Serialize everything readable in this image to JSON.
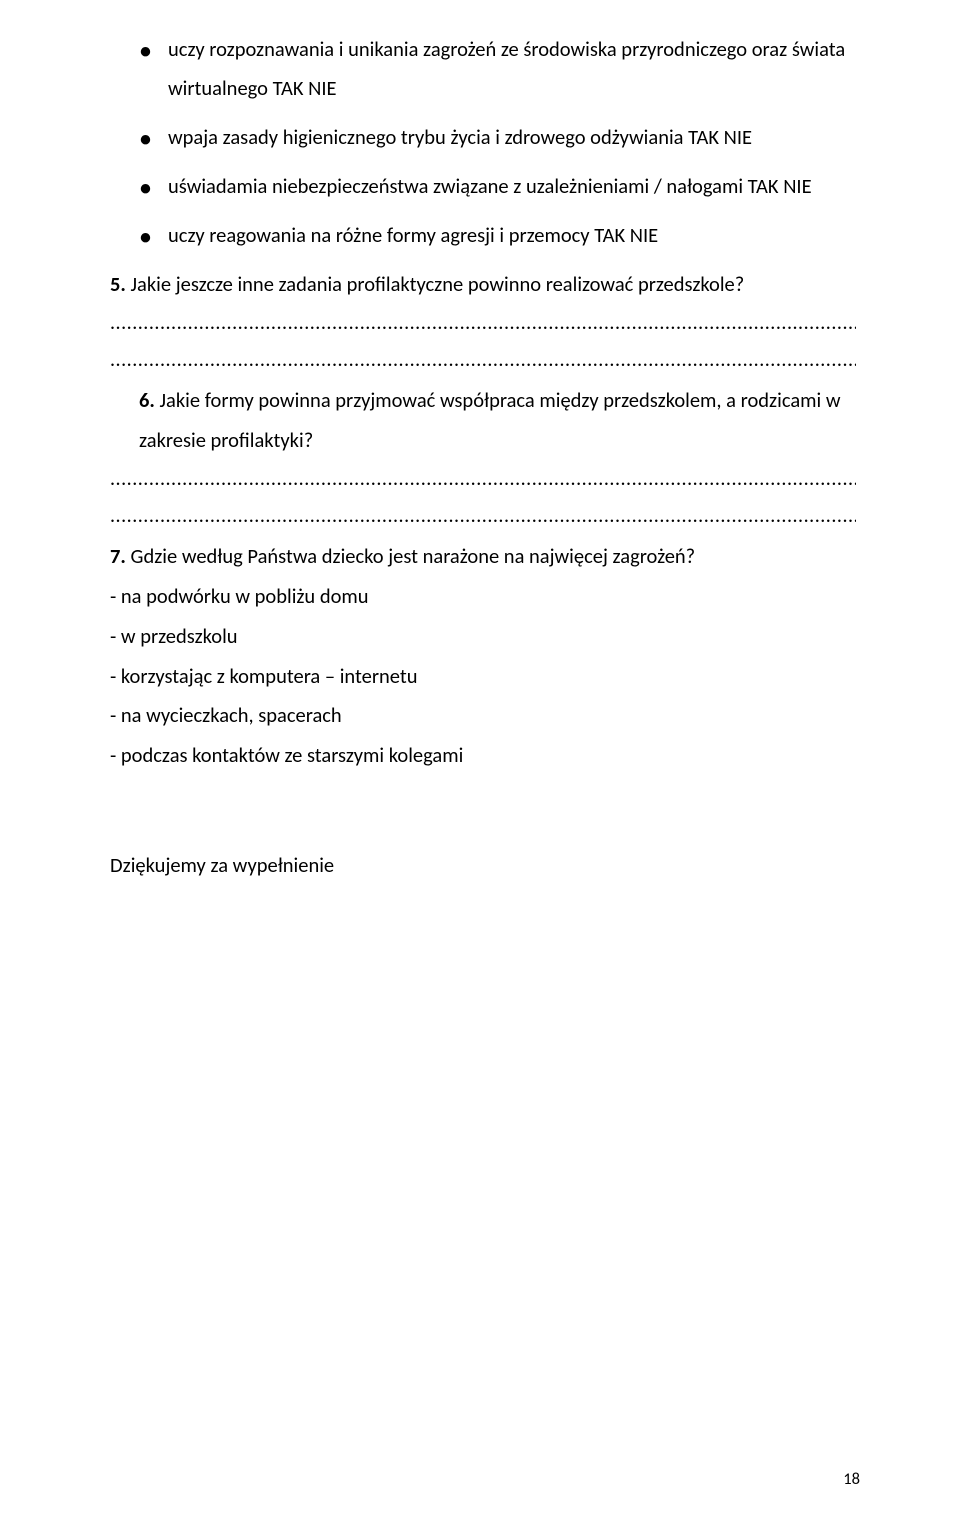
{
  "bullets": [
    "uczy rozpoznawania i unikania zagrożeń ze środowiska przyrodniczego oraz świata wirtualnego TAK NIE",
    "wpaja zasady higienicznego trybu życia i zdrowego odżywiania TAK NIE",
    "uświadamia niebezpieczeństwa związane z uzależnieniami / nałogami TAK NIE",
    "uczy reagowania na różne formy agresji i przemocy TAK NIE"
  ],
  "q5": {
    "num": "5.",
    "text": " Jakie jeszcze inne zadania profilaktyczne powinno realizować przedszkole?"
  },
  "q6": {
    "num": "6.",
    "text": " Jakie formy powinna przyjmować współpraca między przedszkolem, a rodzicami w zakresie profilaktyki?"
  },
  "q7": {
    "num": "7.",
    "text": " Gdzie według Państwa dziecko jest narażone na najwięcej zagrożeń?"
  },
  "answers": [
    "- na podwórku w pobliżu domu",
    "- w przedszkolu",
    "- korzystając z komputera – internetu",
    "- na wycieczkach, spacerach",
    "- podczas kontaktów ze starszymi kolegami"
  ],
  "thanks": "Dziękujemy za wypełnienie",
  "dotted": "..................................................................................................................................................",
  "pageNumber": "18"
}
